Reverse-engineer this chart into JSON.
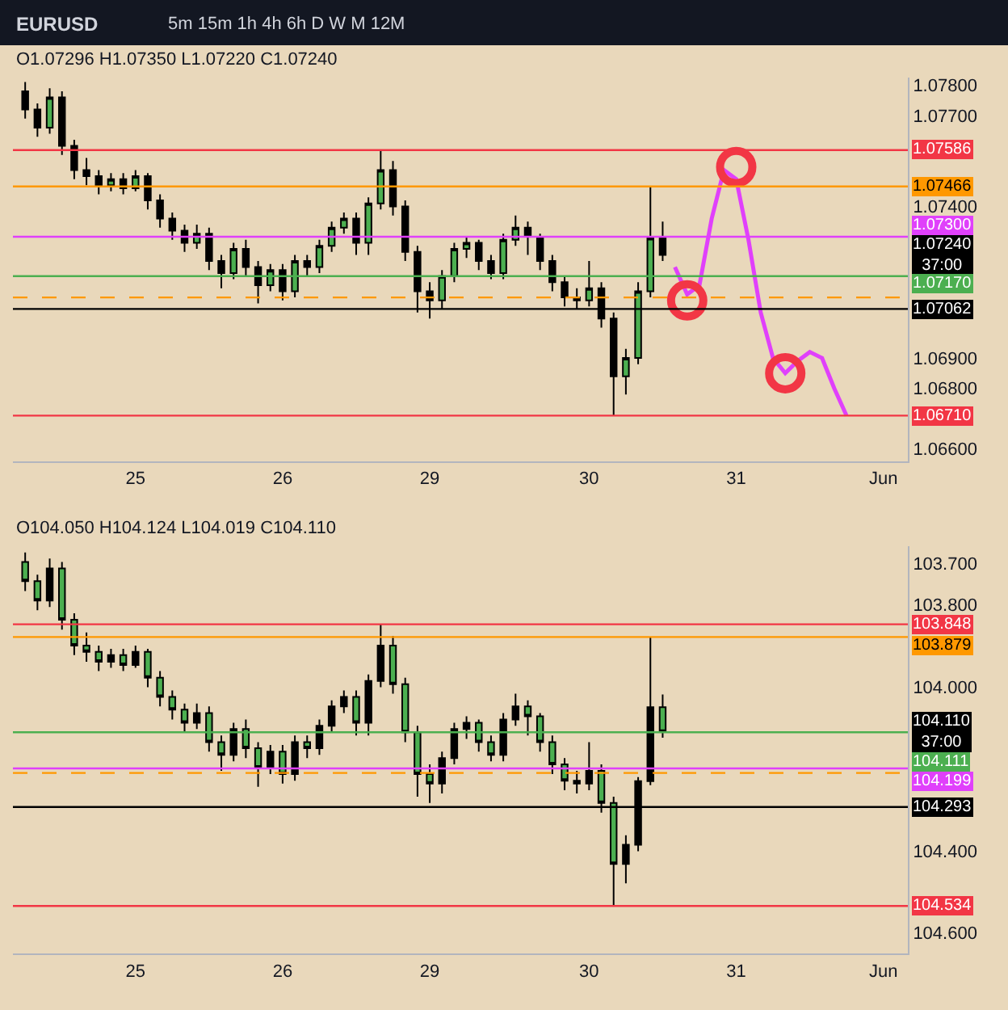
{
  "chart_data": [
    {
      "type": "candlestick",
      "title": "EURUSD",
      "subtitle": "5m 15m 1h 4h 6h D W M 12M",
      "annotations": [
        "O1.07296 H1.07350 L1.07220 C1.07240",
        "1.07240\n37:00"
      ],
      "categories": [
        null,
        null,
        null,
        null,
        null,
        null,
        null,
        null,
        null,
        "25",
        null,
        null,
        null,
        null,
        null,
        null,
        null,
        null,
        null,
        null,
        null,
        "26",
        null,
        null,
        null,
        null,
        null,
        null,
        null,
        null,
        null,
        null,
        null,
        "29",
        null,
        null,
        null,
        null,
        null,
        null,
        null,
        null,
        null,
        null,
        null,
        null,
        "30",
        null,
        null,
        null,
        null,
        null,
        null,
        null,
        null,
        null,
        null,
        null,
        "31",
        null,
        null,
        null,
        null,
        null,
        null,
        null,
        null,
        null,
        null,
        null,
        "Jun"
      ],
      "ohlc": [
        [
          1.0778,
          1.0781,
          1.0769,
          1.0772
        ],
        [
          1.0772,
          1.0774,
          1.0763,
          1.0766
        ],
        [
          1.0766,
          1.0779,
          1.0764,
          1.0776
        ],
        [
          1.0776,
          1.0778,
          1.0757,
          1.076
        ],
        [
          1.076,
          1.0762,
          1.0749,
          1.0752
        ],
        [
          1.0752,
          1.0756,
          1.0747,
          1.075
        ],
        [
          1.075,
          1.0752,
          1.0744,
          1.0747
        ],
        [
          1.0747,
          1.0751,
          1.0745,
          1.0749
        ],
        [
          1.0749,
          1.0751,
          1.0744,
          1.0746
        ],
        [
          1.0746,
          1.0752,
          1.0745,
          1.075
        ],
        [
          1.075,
          1.0751,
          1.0739,
          1.0742
        ],
        [
          1.0742,
          1.0744,
          1.0733,
          1.0736
        ],
        [
          1.0736,
          1.0738,
          1.0729,
          1.0732
        ],
        [
          1.0732,
          1.0734,
          1.0725,
          1.0728
        ],
        [
          1.0728,
          1.0734,
          1.0726,
          1.0731
        ],
        [
          1.0731,
          1.0733,
          1.0719,
          1.0722
        ],
        [
          1.0722,
          1.0724,
          1.0713,
          1.0718
        ],
        [
          1.0718,
          1.0728,
          1.0716,
          1.0726
        ],
        [
          1.0726,
          1.0729,
          1.0717,
          1.072
        ],
        [
          1.072,
          1.0722,
          1.0708,
          1.0714
        ],
        [
          1.0714,
          1.0721,
          1.0712,
          1.0719
        ],
        [
          1.0719,
          1.0721,
          1.0709,
          1.0712
        ],
        [
          1.0712,
          1.0724,
          1.071,
          1.0722
        ],
        [
          1.0722,
          1.0724,
          1.0717,
          1.072
        ],
        [
          1.072,
          1.0729,
          1.0718,
          1.0727
        ],
        [
          1.0727,
          1.0735,
          1.0725,
          1.0733
        ],
        [
          1.0733,
          1.0738,
          1.0731,
          1.0736
        ],
        [
          1.0736,
          1.0738,
          1.0724,
          1.0728
        ],
        [
          1.0728,
          1.0743,
          1.0724,
          1.0741
        ],
        [
          1.0741,
          1.07586,
          1.0739,
          1.0752
        ],
        [
          1.0752,
          1.0755,
          1.0737,
          1.074
        ],
        [
          1.074,
          1.0742,
          1.0722,
          1.0725
        ],
        [
          1.0725,
          1.0727,
          1.0705,
          1.0712
        ],
        [
          1.0712,
          1.0715,
          1.0703,
          1.0709
        ],
        [
          1.0709,
          1.0719,
          1.0706,
          1.0717
        ],
        [
          1.0717,
          1.0728,
          1.0715,
          1.0726
        ],
        [
          1.0726,
          1.073,
          1.0723,
          1.0728
        ],
        [
          1.0728,
          1.0729,
          1.0719,
          1.0722
        ],
        [
          1.0722,
          1.0724,
          1.0716,
          1.0718
        ],
        [
          1.0718,
          1.0731,
          1.0716,
          1.0729
        ],
        [
          1.0729,
          1.0737,
          1.0727,
          1.0733
        ],
        [
          1.0733,
          1.0735,
          1.0724,
          1.073
        ],
        [
          1.073,
          1.0731,
          1.0719,
          1.0722
        ],
        [
          1.0722,
          1.0724,
          1.0712,
          1.0715
        ],
        [
          1.0715,
          1.0717,
          1.0707,
          1.071
        ],
        [
          1.071,
          1.0713,
          1.0706,
          1.0709
        ],
        [
          1.0709,
          1.0722,
          1.0707,
          1.0713
        ],
        [
          1.0713,
          1.0715,
          1.07,
          1.0703
        ],
        [
          1.0703,
          1.0705,
          1.0671,
          1.0684
        ],
        [
          1.0684,
          1.0693,
          1.0678,
          1.069
        ],
        [
          1.069,
          1.0715,
          1.0688,
          1.0712
        ],
        [
          1.0712,
          1.07466,
          1.071,
          1.07296
        ],
        [
          1.07296,
          1.0735,
          1.0722,
          1.0724
        ],
        null,
        null,
        null,
        null,
        null,
        null,
        null,
        null,
        null,
        null,
        null,
        null,
        null,
        null,
        null,
        null,
        null,
        null
      ],
      "series": [
        {
          "type": "line",
          "color": "#e040fb",
          "values": [
            null,
            null,
            null,
            null,
            null,
            null,
            null,
            null,
            null,
            null,
            null,
            null,
            null,
            null,
            null,
            null,
            null,
            null,
            null,
            null,
            null,
            null,
            null,
            null,
            null,
            null,
            null,
            null,
            null,
            null,
            null,
            null,
            null,
            null,
            null,
            null,
            null,
            null,
            null,
            null,
            null,
            null,
            null,
            null,
            null,
            null,
            null,
            null,
            null,
            null,
            null,
            null,
            null,
            1.072,
            1.0711,
            1.0714,
            1.0736,
            1.0752,
            1.0749,
            1.0729,
            1.0705,
            1.069,
            1.0685,
            1.0689,
            1.0692,
            1.069,
            1.068,
            1.0671,
            null,
            null,
            null
          ]
        },
        {
          "type": "scatter",
          "marker": "circle",
          "color": "#f23645",
          "values": [
            null,
            null,
            null,
            null,
            null,
            null,
            null,
            null,
            null,
            null,
            null,
            null,
            null,
            null,
            null,
            null,
            null,
            null,
            null,
            null,
            null,
            null,
            null,
            null,
            null,
            null,
            null,
            null,
            null,
            null,
            null,
            null,
            null,
            null,
            null,
            null,
            null,
            null,
            null,
            null,
            null,
            null,
            null,
            null,
            null,
            null,
            null,
            null,
            null,
            null,
            null,
            null,
            null,
            null,
            1.0709,
            null,
            null,
            null,
            1.0753,
            null,
            null,
            null,
            1.0685,
            null,
            null,
            null,
            null,
            null,
            null,
            null,
            null
          ]
        }
      ],
      "ref_lines": [
        {
          "axis": "y",
          "value": 1.07586,
          "label": "1.07586",
          "color": "#f23645"
        },
        {
          "axis": "y",
          "value": 1.07466,
          "label": "1.07466",
          "color": "#ff9800"
        },
        {
          "axis": "y",
          "value": 1.073,
          "label": "1.07300",
          "color": "#e040fb"
        },
        {
          "axis": "y",
          "value": 1.0717,
          "label": "1.07170",
          "color": "#4caf50"
        },
        {
          "axis": "y",
          "value": 1.071,
          "label": null,
          "color": "#ff9800",
          "line_style": "dashed"
        },
        {
          "axis": "y",
          "value": 1.07062,
          "label": "1.07062",
          "color": "#000000"
        },
        {
          "axis": "y",
          "value": 1.0671,
          "label": "1.06710",
          "color": "#f23645"
        }
      ],
      "ylim": [
        1.0656,
        1.07825
      ],
      "yticks": [
        {
          "value": 1.066,
          "label": "1.06600"
        },
        {
          "value": 1.068,
          "label": "1.06800"
        },
        {
          "value": 1.069,
          "label": "1.06900"
        },
        {
          "value": 1.074,
          "label": "1.07400"
        },
        {
          "value": 1.077,
          "label": "1.07700"
        },
        {
          "value": 1.078,
          "label": "1.07800"
        }
      ]
    },
    {
      "type": "candlestick",
      "annotations": [
        "O104.050 H104.124 L104.019 C104.110",
        "104.110\n37:00"
      ],
      "categories": [
        null,
        null,
        null,
        null,
        null,
        null,
        null,
        null,
        null,
        "25",
        null,
        null,
        null,
        null,
        null,
        null,
        null,
        null,
        null,
        null,
        null,
        "26",
        null,
        null,
        null,
        null,
        null,
        null,
        null,
        null,
        null,
        null,
        null,
        "29",
        null,
        null,
        null,
        null,
        null,
        null,
        null,
        null,
        null,
        null,
        null,
        null,
        "30",
        null,
        null,
        null,
        null,
        null,
        null,
        null,
        null,
        null,
        null,
        null,
        "31",
        null,
        null,
        null,
        null,
        null,
        null,
        null,
        null,
        null,
        null,
        null,
        "Jun"
      ],
      "ohlc": [
        [
          103.696,
          103.767,
          103.673,
          103.743
        ],
        [
          103.743,
          103.814,
          103.727,
          103.79
        ],
        [
          103.79,
          103.806,
          103.688,
          103.712
        ],
        [
          103.712,
          103.861,
          103.696,
          103.837
        ],
        [
          103.837,
          103.923,
          103.821,
          103.9
        ],
        [
          103.9,
          103.939,
          103.868,
          103.915
        ],
        [
          103.915,
          103.962,
          103.9,
          103.939
        ],
        [
          103.939,
          103.954,
          103.908,
          103.923
        ],
        [
          103.923,
          103.962,
          103.908,
          103.947
        ],
        [
          103.947,
          103.954,
          103.9,
          103.915
        ],
        [
          103.915,
          104.001,
          103.908,
          103.978
        ],
        [
          103.978,
          104.048,
          103.962,
          104.025
        ],
        [
          104.025,
          104.08,
          104.009,
          104.056
        ],
        [
          104.056,
          104.111,
          104.041,
          104.088
        ],
        [
          104.088,
          104.103,
          104.041,
          104.064
        ],
        [
          104.064,
          104.158,
          104.048,
          104.135
        ],
        [
          104.135,
          104.205,
          104.119,
          104.166
        ],
        [
          104.166,
          104.182,
          104.088,
          104.103
        ],
        [
          104.103,
          104.174,
          104.08,
          104.15
        ],
        [
          104.15,
          104.244,
          104.135,
          104.197
        ],
        [
          104.197,
          104.213,
          104.142,
          104.158
        ],
        [
          104.158,
          104.236,
          104.142,
          104.213
        ],
        [
          104.213,
          104.229,
          104.119,
          104.135
        ],
        [
          104.135,
          104.174,
          104.119,
          104.15
        ],
        [
          104.15,
          104.166,
          104.08,
          104.095
        ],
        [
          104.095,
          104.111,
          104.033,
          104.048
        ],
        [
          104.048,
          104.064,
          104.009,
          104.025
        ],
        [
          104.025,
          104.119,
          104.009,
          104.088
        ],
        [
          104.088,
          104.119,
          103.97,
          103.986
        ],
        [
          103.986,
          104.001,
          103.848,
          103.9
        ],
        [
          103.9,
          104.017,
          103.876,
          103.994
        ],
        [
          103.994,
          104.135,
          103.978,
          104.111
        ],
        [
          104.111,
          104.268,
          104.095,
          104.213
        ],
        [
          104.213,
          104.283,
          104.189,
          104.236
        ],
        [
          104.236,
          104.26,
          104.158,
          104.174
        ],
        [
          104.174,
          104.189,
          104.088,
          104.103
        ],
        [
          104.103,
          104.127,
          104.072,
          104.088
        ],
        [
          104.088,
          104.158,
          104.08,
          104.135
        ],
        [
          104.135,
          104.182,
          104.119,
          104.166
        ],
        [
          104.166,
          104.182,
          104.064,
          104.08
        ],
        [
          104.08,
          104.095,
          104.017,
          104.048
        ],
        [
          104.048,
          104.119,
          104.033,
          104.072
        ],
        [
          104.072,
          104.158,
          104.064,
          104.135
        ],
        [
          104.135,
          104.213,
          104.119,
          104.189
        ],
        [
          104.189,
          104.252,
          104.174,
          104.229
        ],
        [
          104.229,
          104.26,
          104.205,
          104.236
        ],
        [
          104.236,
          104.252,
          104.135,
          104.205
        ],
        [
          104.205,
          104.307,
          104.189,
          104.283
        ],
        [
          104.283,
          104.534,
          104.268,
          104.432
        ],
        [
          104.432,
          104.479,
          104.362,
          104.385
        ],
        [
          104.385,
          104.401,
          104.22,
          104.23
        ],
        [
          104.23,
          104.24,
          103.879,
          104.05
        ],
        [
          104.05,
          104.124,
          104.019,
          104.11
        ],
        null,
        null,
        null,
        null,
        null,
        null,
        null,
        null,
        null,
        null,
        null,
        null,
        null,
        null,
        null,
        null,
        null,
        null
      ],
      "ref_lines": [
        {
          "axis": "y",
          "value": 103.848,
          "label": "103.848",
          "color": "#f23645"
        },
        {
          "axis": "y",
          "value": 103.879,
          "label": "103.879",
          "color": "#ff9800"
        },
        {
          "axis": "y",
          "value": 104.111,
          "label": "104.111",
          "color": "#4caf50"
        },
        {
          "axis": "y",
          "value": 104.199,
          "label": "104.199",
          "color": "#e040fb"
        },
        {
          "axis": "y",
          "value": 104.21,
          "label": null,
          "color": "#ff9800",
          "line_style": "dashed"
        },
        {
          "axis": "y",
          "value": 104.293,
          "label": "104.293",
          "color": "#000000"
        },
        {
          "axis": "y",
          "value": 104.534,
          "label": "104.534",
          "color": "#f23645"
        }
      ],
      "ylim": [
        104.65,
        103.657
      ],
      "yticks": [
        {
          "value": 103.7,
          "label": "103.700"
        },
        {
          "value": 103.8,
          "label": "103.800"
        },
        {
          "value": 104.0,
          "label": "104.000"
        },
        {
          "value": 104.4,
          "label": "104.400"
        },
        {
          "value": 104.6,
          "label": "104.600"
        }
      ]
    }
  ]
}
